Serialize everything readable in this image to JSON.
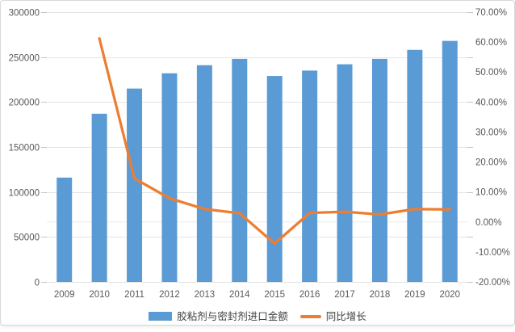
{
  "legend": {
    "bars_label": "胶粘剂与密封剂进口金额",
    "line_label": "同比增长"
  },
  "chart_data": {
    "type": "bar",
    "subtype": "combo-bar-line-dual-axis",
    "title": "",
    "categories": [
      "2009",
      "2010",
      "2011",
      "2012",
      "2013",
      "2014",
      "2015",
      "2016",
      "2017",
      "2018",
      "2019",
      "2020"
    ],
    "series": [
      {
        "name": "胶粘剂与密封剂进口金额",
        "type": "bar",
        "axis": "left",
        "color": "#5B9BD5",
        "values": [
          116000,
          187000,
          215000,
          232000,
          241000,
          248000,
          229000,
          235000,
          242000,
          248000,
          258000,
          268000
        ]
      },
      {
        "name": "同比增长",
        "type": "line",
        "axis": "right",
        "color": "#ED7D31",
        "values": [
          null,
          61.2,
          14.5,
          7.9,
          4.3,
          2.9,
          -7.2,
          3.0,
          3.4,
          2.5,
          4.3,
          4.2
        ]
      }
    ],
    "left_axis": {
      "min": 0,
      "max": 300000,
      "step": 50000,
      "tick_labels": [
        "0",
        "50000",
        "100000",
        "150000",
        "200000",
        "250000",
        "300000"
      ]
    },
    "right_axis": {
      "min": -20,
      "max": 70,
      "step": 10,
      "format": "percent",
      "tick_labels": [
        "-20.00%",
        "-10.00%",
        "0.00%",
        "10.00%",
        "20.00%",
        "30.00%",
        "40.00%",
        "50.00%",
        "60.00%",
        "70.00%"
      ]
    },
    "grid": "horizontal-at-left-axis-ticks",
    "legend_position": "bottom-center",
    "colors": {
      "bar": "#5B9BD5",
      "line": "#ED7D31",
      "gridline": "#e4e4e4",
      "tick_stub": "#c6c6c6",
      "zero_pct_line": "#ececec",
      "axis_text": "#595959",
      "background": "#ffffff",
      "border": "#d8d8d8"
    }
  }
}
